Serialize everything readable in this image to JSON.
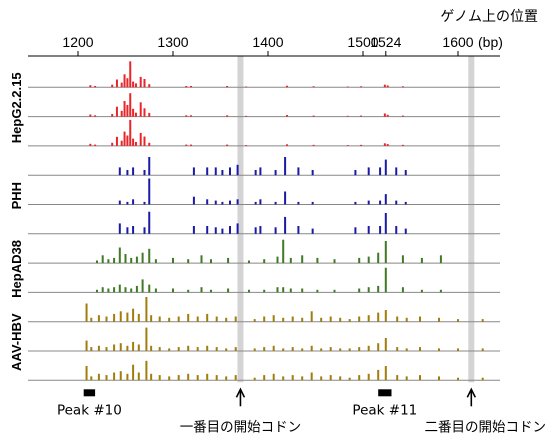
{
  "chart_data": {
    "type": "bar",
    "axis_title": "ゲノム上の位置",
    "x_unit": "(bp)",
    "xlim": [
      1160,
      1640
    ],
    "x_ticks": [
      {
        "value": 1200,
        "label": "1200"
      },
      {
        "value": 1300,
        "label": "1300"
      },
      {
        "value": 1400,
        "label": "1400"
      },
      {
        "value": 1500,
        "label": "1500"
      },
      {
        "value": 1524,
        "label": "1524"
      },
      {
        "value": 1600,
        "label": "1600"
      }
    ],
    "groups": [
      {
        "name": "HepG2.2.15",
        "color": "#e8262a",
        "tracks": [
          0,
          1,
          2
        ]
      },
      {
        "name": "PHH",
        "color": "#1a1aa6",
        "tracks": [
          3,
          4,
          5
        ]
      },
      {
        "name": "HepAD38",
        "color": "#3f7a24",
        "tracks": [
          6,
          7
        ]
      },
      {
        "name": "AAV-HBV",
        "color": "#a07d0c",
        "tracks": [
          8,
          9,
          10
        ]
      }
    ],
    "highlight_positions": [
      1371,
      1614
    ],
    "peaks": [
      {
        "label": "Peak #10",
        "start": 1206,
        "end": 1218
      },
      {
        "label": "Peak #11",
        "start": 1516,
        "end": 1530
      }
    ],
    "annotations": [
      {
        "label": "一番目の開始コドン",
        "position": 1371
      },
      {
        "label": "二番目の開始コドン",
        "position": 1614
      }
    ],
    "tracks": [
      {
        "group": "HepG2.2.15",
        "x": [
          1213,
          1218,
          1236,
          1241,
          1246,
          1249,
          1252,
          1255,
          1258,
          1261,
          1266,
          1270,
          1275,
          1314,
          1319,
          1357,
          1377,
          1420,
          1448,
          1484,
          1498,
          1523,
          1526,
          1542
        ],
        "values": [
          0.08,
          0.05,
          0.1,
          0.3,
          0.18,
          0.5,
          0.35,
          1.0,
          0.22,
          0.15,
          0.4,
          0.32,
          0.12,
          0.05,
          0.05,
          0.05,
          0.03,
          0.06,
          0.04,
          0.03,
          0.04,
          0.1,
          0.07,
          0.04
        ]
      },
      {
        "group": "HepG2.2.15",
        "x": [
          1213,
          1218,
          1236,
          1241,
          1246,
          1249,
          1252,
          1255,
          1258,
          1261,
          1266,
          1270,
          1275,
          1314,
          1319,
          1357,
          1377,
          1420,
          1448,
          1484,
          1498,
          1523,
          1526,
          1542
        ],
        "values": [
          0.08,
          0.05,
          0.1,
          0.38,
          0.22,
          0.6,
          0.45,
          0.9,
          0.3,
          0.15,
          0.55,
          0.32,
          0.14,
          0.05,
          0.05,
          0.05,
          0.03,
          0.06,
          0.04,
          0.03,
          0.04,
          0.12,
          0.07,
          0.04
        ]
      },
      {
        "group": "HepG2.2.15",
        "x": [
          1213,
          1218,
          1236,
          1241,
          1246,
          1249,
          1252,
          1255,
          1258,
          1261,
          1266,
          1270,
          1275,
          1314,
          1319,
          1357,
          1377,
          1420,
          1448,
          1484,
          1498,
          1523,
          1526,
          1542
        ],
        "values": [
          0.08,
          0.05,
          0.12,
          0.35,
          0.2,
          0.55,
          0.4,
          1.0,
          0.28,
          0.15,
          0.5,
          0.36,
          0.12,
          0.05,
          0.05,
          0.05,
          0.03,
          0.06,
          0.04,
          0.03,
          0.04,
          0.1,
          0.07,
          0.04
        ]
      },
      {
        "group": "PHH",
        "x": [
          1244,
          1252,
          1258,
          1270,
          1275,
          1322,
          1336,
          1345,
          1352,
          1360,
          1368,
          1387,
          1392,
          1408,
          1418,
          1432,
          1447,
          1492,
          1506,
          1518,
          1524,
          1535,
          1545
        ],
        "values": [
          0.3,
          0.2,
          0.3,
          0.2,
          0.7,
          0.3,
          0.3,
          0.3,
          0.2,
          0.3,
          0.4,
          0.2,
          0.3,
          0.2,
          0.7,
          0.3,
          0.2,
          0.2,
          0.3,
          0.3,
          0.6,
          0.3,
          0.2
        ]
      },
      {
        "group": "PHH",
        "x": [
          1244,
          1252,
          1258,
          1270,
          1275,
          1322,
          1336,
          1345,
          1352,
          1360,
          1368,
          1387,
          1392,
          1408,
          1418,
          1432,
          1447,
          1492,
          1506,
          1518,
          1524,
          1535,
          1545
        ],
        "values": [
          0.15,
          0.1,
          0.2,
          0.1,
          1.0,
          0.3,
          0.2,
          0.15,
          0.1,
          0.15,
          0.2,
          0.1,
          0.2,
          0.1,
          0.5,
          0.1,
          0.1,
          0.1,
          0.15,
          0.15,
          0.4,
          0.15,
          0.1
        ]
      },
      {
        "group": "PHH",
        "x": [
          1244,
          1252,
          1258,
          1270,
          1275,
          1322,
          1336,
          1345,
          1352,
          1360,
          1368,
          1387,
          1392,
          1408,
          1418,
          1432,
          1447,
          1492,
          1506,
          1518,
          1524,
          1535,
          1545
        ],
        "values": [
          0.4,
          0.25,
          0.3,
          0.25,
          0.85,
          0.3,
          0.3,
          0.25,
          0.2,
          0.3,
          0.4,
          0.25,
          0.3,
          0.25,
          0.65,
          0.3,
          0.2,
          0.25,
          0.3,
          0.3,
          0.8,
          0.3,
          0.2
        ]
      },
      {
        "group": "HepAD38",
        "x": [
          1220,
          1226,
          1232,
          1238,
          1244,
          1250,
          1256,
          1262,
          1268,
          1275,
          1282,
          1300,
          1316,
          1330,
          1340,
          1358,
          1380,
          1396,
          1410,
          1416,
          1424,
          1436,
          1452,
          1470,
          1496,
          1506,
          1516,
          1524,
          1542,
          1562,
          1582
        ],
        "values": [
          0.1,
          0.3,
          0.15,
          0.2,
          0.6,
          0.35,
          0.2,
          0.25,
          0.4,
          0.55,
          0.15,
          0.2,
          0.15,
          0.3,
          0.15,
          0.2,
          0.1,
          0.15,
          0.25,
          0.9,
          0.2,
          0.3,
          0.2,
          0.15,
          0.2,
          0.25,
          0.4,
          0.85,
          0.3,
          0.2,
          0.3
        ]
      },
      {
        "group": "HepAD38",
        "x": [
          1220,
          1226,
          1232,
          1238,
          1244,
          1250,
          1256,
          1262,
          1268,
          1275,
          1282,
          1300,
          1316,
          1330,
          1340,
          1358,
          1380,
          1396,
          1410,
          1416,
          1424,
          1436,
          1452,
          1470,
          1496,
          1506,
          1516,
          1524,
          1542,
          1562,
          1582
        ],
        "values": [
          0.1,
          0.2,
          0.15,
          0.2,
          0.3,
          0.2,
          0.15,
          0.25,
          0.5,
          0.3,
          0.15,
          0.15,
          0.1,
          0.2,
          0.1,
          0.15,
          0.1,
          0.1,
          0.2,
          0.2,
          0.15,
          0.15,
          0.1,
          0.1,
          0.15,
          0.2,
          0.25,
          0.95,
          0.2,
          0.1,
          0.1
        ]
      },
      {
        "group": "AAV-HBV",
        "x": [
          1209,
          1214,
          1222,
          1230,
          1238,
          1245,
          1252,
          1258,
          1264,
          1272,
          1277,
          1286,
          1296,
          1306,
          1316,
          1326,
          1336,
          1346,
          1356,
          1366,
          1386,
          1396,
          1406,
          1416,
          1426,
          1436,
          1446,
          1456,
          1466,
          1476,
          1486,
          1496,
          1506,
          1516,
          1524,
          1536,
          1546,
          1560,
          1580,
          1600,
          1626
        ],
        "values": [
          0.7,
          0.15,
          0.25,
          0.2,
          0.3,
          0.4,
          0.35,
          0.5,
          0.3,
          0.95,
          0.25,
          0.2,
          0.15,
          0.2,
          0.3,
          0.2,
          0.3,
          0.2,
          0.15,
          0.2,
          0.1,
          0.2,
          0.25,
          0.15,
          0.2,
          0.15,
          0.4,
          0.15,
          0.2,
          0.15,
          0.1,
          0.2,
          0.25,
          0.35,
          0.45,
          0.2,
          0.15,
          0.2,
          0.15,
          0.1,
          0.1
        ]
      },
      {
        "group": "AAV-HBV",
        "x": [
          1209,
          1214,
          1222,
          1230,
          1238,
          1245,
          1252,
          1258,
          1264,
          1272,
          1277,
          1286,
          1296,
          1306,
          1316,
          1326,
          1336,
          1346,
          1356,
          1366,
          1386,
          1396,
          1406,
          1416,
          1426,
          1436,
          1446,
          1456,
          1466,
          1476,
          1486,
          1496,
          1506,
          1516,
          1524,
          1536,
          1546,
          1560,
          1580,
          1600,
          1626
        ],
        "values": [
          0.4,
          0.15,
          0.2,
          0.15,
          0.25,
          0.3,
          0.2,
          0.35,
          0.25,
          0.9,
          0.2,
          0.15,
          0.1,
          0.15,
          0.2,
          0.15,
          0.2,
          0.15,
          0.1,
          0.15,
          0.1,
          0.15,
          0.2,
          0.1,
          0.15,
          0.1,
          0.2,
          0.1,
          0.15,
          0.1,
          0.1,
          0.15,
          0.2,
          0.3,
          0.5,
          0.15,
          0.1,
          0.15,
          0.1,
          0.1,
          0.1
        ]
      },
      {
        "group": "AAV-HBV",
        "x": [
          1209,
          1214,
          1222,
          1230,
          1238,
          1245,
          1252,
          1258,
          1264,
          1272,
          1277,
          1286,
          1296,
          1306,
          1316,
          1326,
          1336,
          1346,
          1356,
          1366,
          1386,
          1396,
          1406,
          1416,
          1426,
          1436,
          1446,
          1456,
          1466,
          1476,
          1486,
          1496,
          1506,
          1516,
          1524,
          1536,
          1546,
          1560,
          1580,
          1600,
          1626
        ],
        "values": [
          0.55,
          0.15,
          0.25,
          0.2,
          0.3,
          0.35,
          0.25,
          0.6,
          0.3,
          0.75,
          0.25,
          0.2,
          0.15,
          0.2,
          0.25,
          0.2,
          0.25,
          0.2,
          0.15,
          0.2,
          0.1,
          0.2,
          0.25,
          0.15,
          0.2,
          0.15,
          0.3,
          0.15,
          0.2,
          0.15,
          0.1,
          0.2,
          0.25,
          0.4,
          0.55,
          0.2,
          0.15,
          0.2,
          0.15,
          0.1,
          0.1
        ]
      }
    ]
  }
}
